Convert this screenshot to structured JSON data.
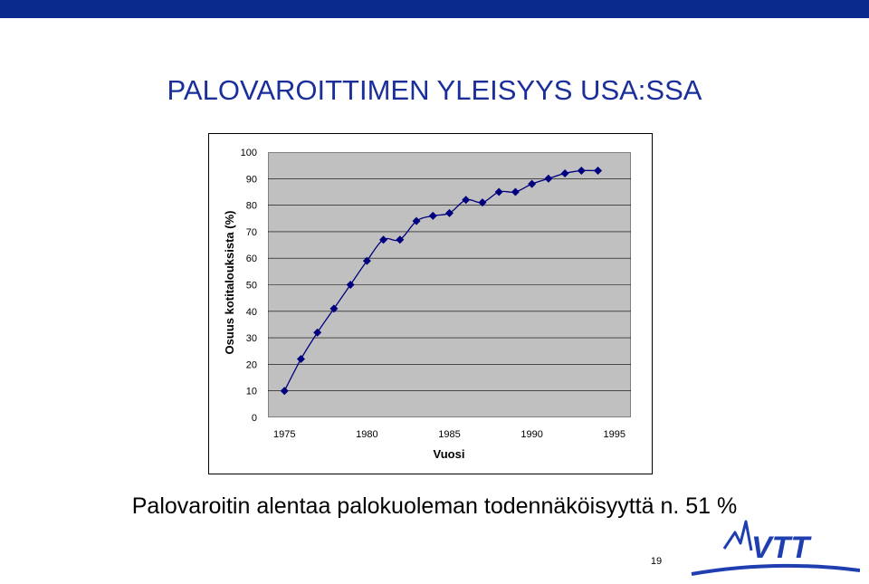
{
  "slide": {
    "title": "PALOVAROITTIMEN YLEISYYS USA:SSA",
    "caption": "Palovaroitin alentaa palokuoleman todennäköisyyttä n. 51 %",
    "page_number": "19",
    "logo_text": "VTT"
  },
  "colors": {
    "top_bar": "#0b2a8e",
    "title": "#1a2f9a",
    "plot_background": "#c0c0c0",
    "series": "#00007f",
    "logo": "#1f3fb0"
  },
  "chart_data": {
    "type": "line",
    "title": "",
    "xlabel": "Vuosi",
    "ylabel": "Osuus kotitalouksista (%)",
    "xlim": [
      1974,
      1996
    ],
    "ylim": [
      0,
      100
    ],
    "x_ticks": [
      1975,
      1980,
      1985,
      1990,
      1995
    ],
    "y_ticks": [
      0,
      10,
      20,
      30,
      40,
      50,
      60,
      70,
      80,
      90,
      100
    ],
    "grid": "horizontal",
    "legend": "none",
    "series": [
      {
        "name": "",
        "x": [
          1975,
          1976,
          1977,
          1978,
          1979,
          1980,
          1981,
          1982,
          1983,
          1984,
          1985,
          1986,
          1987,
          1988,
          1989,
          1990,
          1991,
          1992,
          1993,
          1994
        ],
        "y": [
          10,
          22,
          32,
          41,
          50,
          59,
          67,
          67,
          74,
          76,
          77,
          82,
          81,
          85,
          85,
          88,
          90,
          92,
          93,
          93
        ]
      }
    ]
  }
}
